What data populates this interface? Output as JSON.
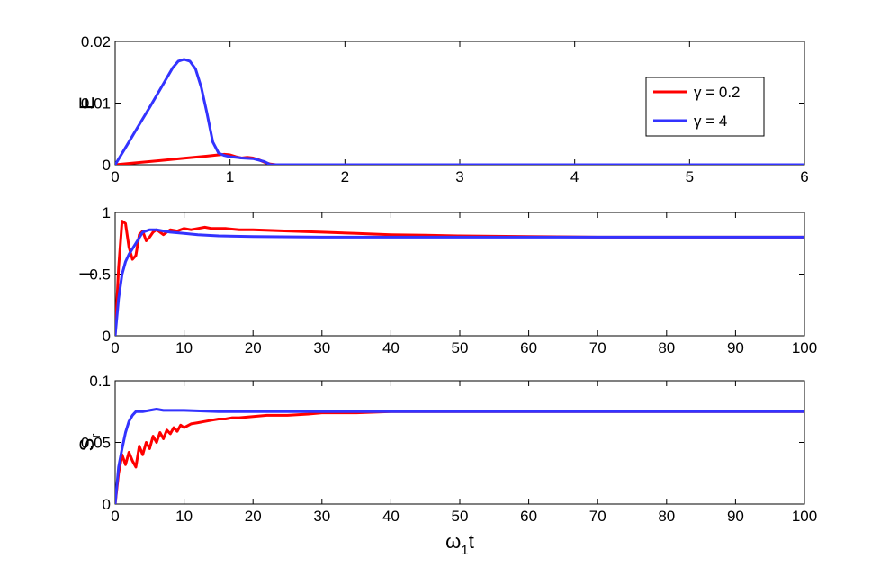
{
  "chart_data": [
    {
      "type": "line",
      "ylabel": "E",
      "xlim": [
        0,
        6
      ],
      "ylim": [
        0,
        0.02
      ],
      "xticks": [
        0,
        1,
        2,
        3,
        4,
        5,
        6
      ],
      "yticks": [
        0,
        0.01,
        0.02
      ],
      "xtick_labels": [
        "0",
        "1",
        "2",
        "3",
        "4",
        "5",
        "6"
      ],
      "ytick_labels": [
        "0",
        "0.01",
        "0.02"
      ],
      "legend": "top-right",
      "series": [
        {
          "name": "γ = 0.2",
          "color": "#ff0000",
          "x": [
            0,
            0.2,
            0.4,
            0.6,
            0.8,
            0.9,
            0.95,
            1.0,
            1.05,
            1.1,
            1.15,
            1.2,
            1.25,
            1.3,
            1.35,
            1.4,
            2,
            3,
            4,
            5,
            6
          ],
          "y": [
            0,
            0.00035,
            0.0007,
            0.00105,
            0.0014,
            0.0016,
            0.0017,
            0.0016,
            0.0013,
            0.0011,
            0.0012,
            0.0011,
            0.0008,
            0.0004,
            0.0001,
            0,
            0,
            0,
            0,
            0,
            0
          ]
        },
        {
          "name": "γ = 4",
          "color": "#3333ff",
          "x": [
            0,
            0.1,
            0.2,
            0.3,
            0.4,
            0.5,
            0.55,
            0.6,
            0.65,
            0.7,
            0.75,
            0.8,
            0.85,
            0.9,
            0.95,
            1.0,
            1.05,
            1.1,
            1.2,
            1.3,
            1.35,
            2,
            3,
            4,
            5,
            6
          ],
          "y": [
            0,
            0.0031,
            0.0062,
            0.0093,
            0.0125,
            0.0157,
            0.0168,
            0.0171,
            0.0168,
            0.0155,
            0.0125,
            0.0083,
            0.0037,
            0.0019,
            0.0015,
            0.0013,
            0.0012,
            0.0011,
            0.001,
            0.0005,
            0,
            0,
            0,
            0,
            0,
            0
          ]
        }
      ]
    },
    {
      "type": "line",
      "ylabel": "I",
      "xlim": [
        0,
        100
      ],
      "ylim": [
        0,
        1
      ],
      "xticks": [
        0,
        10,
        20,
        30,
        40,
        50,
        60,
        70,
        80,
        90,
        100
      ],
      "yticks": [
        0,
        0.5,
        1
      ],
      "xtick_labels": [
        "0",
        "10",
        "20",
        "30",
        "40",
        "50",
        "60",
        "70",
        "80",
        "90",
        "100"
      ],
      "ytick_labels": [
        "0",
        "0.5",
        "1"
      ],
      "series": [
        {
          "name": "γ = 0.2",
          "color": "#ff0000",
          "x": [
            0,
            0.5,
            1.0,
            1.5,
            2.0,
            2.5,
            3.0,
            3.5,
            4.0,
            4.5,
            5.0,
            5.5,
            6.0,
            6.5,
            7.0,
            7.5,
            8,
            9,
            10,
            11,
            12,
            13,
            14,
            15,
            16,
            18,
            20,
            25,
            30,
            35,
            40,
            45,
            50,
            60,
            70,
            80,
            90,
            100
          ],
          "y": [
            0,
            0.55,
            0.93,
            0.91,
            0.72,
            0.62,
            0.65,
            0.82,
            0.85,
            0.77,
            0.8,
            0.84,
            0.86,
            0.84,
            0.82,
            0.84,
            0.86,
            0.85,
            0.87,
            0.86,
            0.87,
            0.88,
            0.87,
            0.87,
            0.87,
            0.86,
            0.86,
            0.85,
            0.84,
            0.83,
            0.82,
            0.815,
            0.81,
            0.805,
            0.8,
            0.8,
            0.8,
            0.8
          ]
        },
        {
          "name": "γ = 4",
          "color": "#3333ff",
          "x": [
            0,
            0.5,
            1,
            1.5,
            2,
            3,
            4,
            5,
            6,
            7,
            8,
            10,
            12,
            15,
            20,
            30,
            40,
            50,
            60,
            70,
            80,
            90,
            100
          ],
          "y": [
            0,
            0.3,
            0.5,
            0.6,
            0.66,
            0.75,
            0.84,
            0.86,
            0.86,
            0.85,
            0.84,
            0.83,
            0.82,
            0.81,
            0.805,
            0.8,
            0.8,
            0.8,
            0.8,
            0.8,
            0.8,
            0.8,
            0.8
          ]
        }
      ]
    },
    {
      "type": "line",
      "ylabel": "S",
      "ylabel_sub": "r",
      "xlabel": "ω",
      "xlabel_sub": "1",
      "xlabel_tail": "t",
      "xlim": [
        0,
        100
      ],
      "ylim": [
        0,
        0.1
      ],
      "xticks": [
        0,
        10,
        20,
        30,
        40,
        50,
        60,
        70,
        80,
        90,
        100
      ],
      "yticks": [
        0,
        0.05,
        0.1
      ],
      "xtick_labels": [
        "0",
        "10",
        "20",
        "30",
        "40",
        "50",
        "60",
        "70",
        "80",
        "90",
        "100"
      ],
      "ytick_labels": [
        "0",
        "0.05",
        "0.1"
      ],
      "series": [
        {
          "name": "γ = 0.2",
          "color": "#ff0000",
          "x": [
            0,
            0.5,
            1.0,
            1.5,
            2.0,
            2.5,
            3.0,
            3.5,
            4.0,
            4.5,
            5.0,
            5.5,
            6.0,
            6.5,
            7.0,
            7.5,
            8.0,
            8.5,
            9.0,
            9.5,
            10,
            11,
            12,
            13,
            14,
            15,
            16,
            17,
            18,
            20,
            22,
            25,
            28,
            30,
            35,
            40,
            50,
            60,
            70,
            80,
            90,
            100
          ],
          "y": [
            0,
            0.025,
            0.04,
            0.032,
            0.042,
            0.035,
            0.03,
            0.047,
            0.04,
            0.05,
            0.045,
            0.055,
            0.05,
            0.058,
            0.053,
            0.06,
            0.057,
            0.062,
            0.059,
            0.064,
            0.062,
            0.065,
            0.066,
            0.067,
            0.068,
            0.069,
            0.069,
            0.07,
            0.07,
            0.071,
            0.072,
            0.072,
            0.073,
            0.074,
            0.074,
            0.075,
            0.075,
            0.075,
            0.075,
            0.075,
            0.075,
            0.075
          ]
        },
        {
          "name": "γ = 4",
          "color": "#3333ff",
          "x": [
            0,
            0.5,
            1,
            1.5,
            2,
            2.5,
            3,
            4,
            5,
            6,
            7,
            8,
            9,
            10,
            15,
            20,
            30,
            40,
            50,
            60,
            70,
            80,
            90,
            100
          ],
          "y": [
            0,
            0.03,
            0.045,
            0.058,
            0.067,
            0.072,
            0.075,
            0.075,
            0.076,
            0.077,
            0.076,
            0.076,
            0.076,
            0.076,
            0.075,
            0.075,
            0.075,
            0.075,
            0.075,
            0.075,
            0.075,
            0.075,
            0.075,
            0.075
          ]
        }
      ]
    }
  ]
}
